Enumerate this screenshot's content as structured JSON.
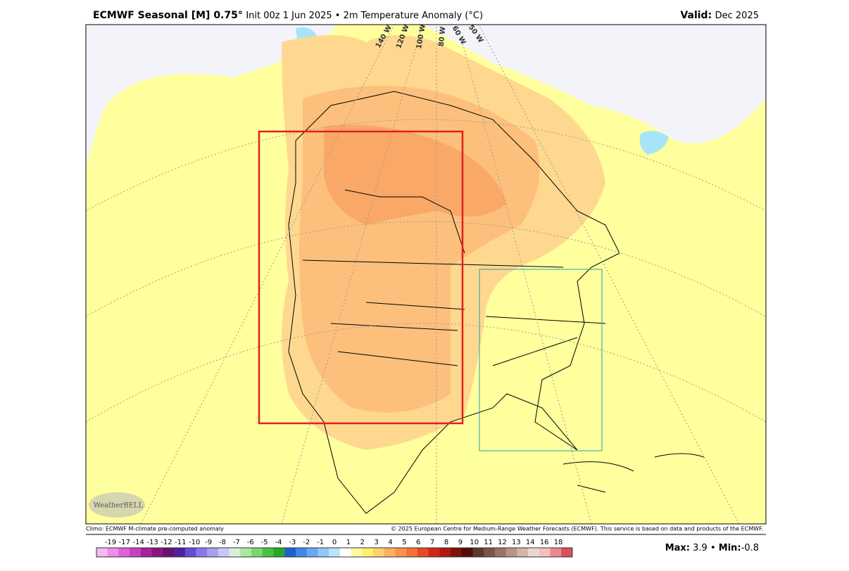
{
  "header": {
    "title_bold": "ECMWF Seasonal [M] 0.75°",
    "title_rest": "Init 00z 1 Jun 2025 • 2m Temperature Anomaly (°C)",
    "valid_label": "Valid:",
    "valid": "Dec 2025"
  },
  "map": {
    "longitude_labels": [
      "140 W",
      "120 W",
      "100 W",
      "80 W",
      "60 W",
      "50 W"
    ],
    "logo": "WeatherBELL"
  },
  "footer": {
    "climo": "Climo: ECMWF M-climate pre-computed anomaly",
    "copyright": "© 2025 European Centre for Medium-Range Weather Forecasts (ECMWF). This service is based on data and products of the ECMWF."
  },
  "colorbar": {
    "ticks": [
      -19,
      -17,
      -14,
      -13,
      -12,
      -11,
      -10,
      -9,
      -8,
      -7,
      -6,
      -5,
      -4,
      -3,
      -2,
      -1,
      0,
      1,
      2,
      3,
      4,
      5,
      6,
      7,
      8,
      9,
      10,
      11,
      12,
      13,
      14,
      16,
      18
    ],
    "colors": [
      "#f7b8f0",
      "#f08ce8",
      "#e060d8",
      "#c840c0",
      "#a8209c",
      "#8a1480",
      "#6a1070",
      "#5020a0",
      "#6a4ad0",
      "#8a78e8",
      "#a8a0f0",
      "#c8c8f8",
      "#d8f0d8",
      "#a8e8a0",
      "#78d870",
      "#48c040",
      "#28a828",
      "#2060d0",
      "#4088e8",
      "#68a8f0",
      "#90c8f8",
      "#b8e4fc",
      "#ffffff",
      "#fffca0",
      "#fff070",
      "#ffd070",
      "#fdb060",
      "#fb9048",
      "#f47038",
      "#e84828",
      "#d02818",
      "#b01810",
      "#801008",
      "#5a0808",
      "#5a3a30",
      "#7a5648",
      "#9a7466",
      "#b89488",
      "#d4b4a8",
      "#ecd8d0",
      "#f4c0b8",
      "#e88890",
      "#d85060"
    ]
  },
  "stats": {
    "max_label": "Max:",
    "max": 3.9,
    "separator": "•",
    "min_label": "Min:",
    "min": -0.8
  }
}
